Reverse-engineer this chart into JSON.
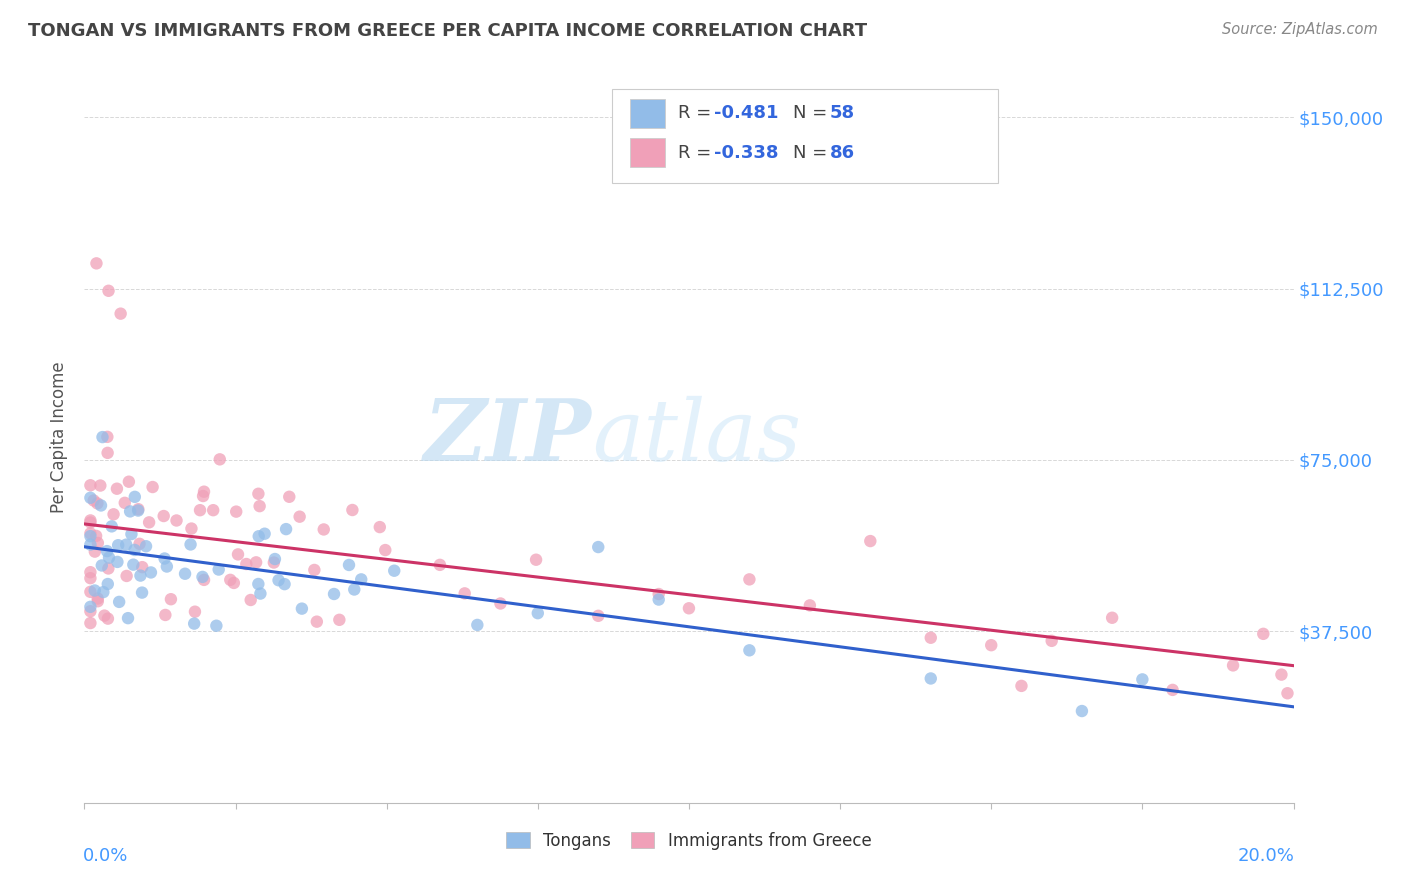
{
  "title": "TONGAN VS IMMIGRANTS FROM GREECE PER CAPITA INCOME CORRELATION CHART",
  "source": "Source: ZipAtlas.com",
  "ylabel": "Per Capita Income",
  "xlim": [
    0.0,
    0.2
  ],
  "ylim": [
    0,
    160000
  ],
  "yticks": [
    0,
    37500,
    75000,
    112500,
    150000
  ],
  "ytick_labels": [
    "",
    "$37,500",
    "$75,000",
    "$112,500",
    "$150,000"
  ],
  "blue_color": "#92bce8",
  "pink_color": "#f0a0b8",
  "blue_line_color": "#3060cc",
  "pink_line_color": "#cc3366",
  "watermark_zip": "ZIP",
  "watermark_atlas": "atlas",
  "background_color": "#ffffff",
  "grid_color": "#d8d8d8",
  "blue_R": -0.481,
  "blue_N": 58,
  "pink_R": -0.338,
  "pink_N": 86,
  "r_vals": [
    "-0.481",
    "-0.338"
  ],
  "n_vals": [
    "58",
    "86"
  ],
  "legend_labels": [
    "Tongans",
    "Immigrants from Greece"
  ],
  "title_color": "#444444",
  "source_color": "#888888",
  "axis_label_color": "#4499ff",
  "scatter_alpha": 0.75,
  "scatter_size": 80
}
